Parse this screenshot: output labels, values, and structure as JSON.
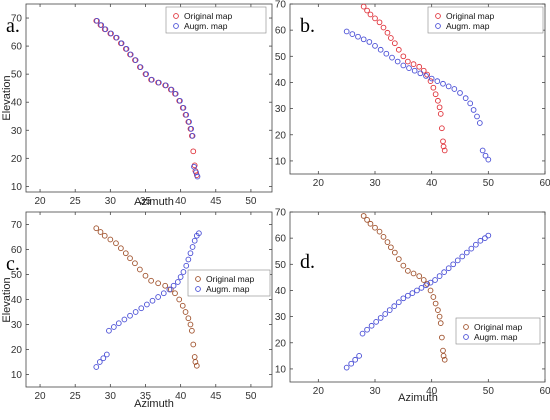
{
  "chart_data": [
    {
      "type": "scatter",
      "panel_label": "a.",
      "xlabel": "Azimuth",
      "ylabel": "Elevation",
      "xlim": [
        18,
        53
      ],
      "ylim": [
        8,
        75
      ],
      "xticks": [
        20,
        25,
        30,
        35,
        40,
        45,
        50
      ],
      "yticks": [
        10,
        20,
        30,
        40,
        50,
        60,
        70
      ],
      "legend_position": "top-right",
      "series": [
        {
          "name": "Original map",
          "color": "#e0343c",
          "points": [
            [
              28.0,
              69
            ],
            [
              28.6,
              67.5
            ],
            [
              29.2,
              66
            ],
            [
              30.0,
              64.5
            ],
            [
              30.8,
              63
            ],
            [
              31.5,
              61
            ],
            [
              32.2,
              59
            ],
            [
              32.8,
              57
            ],
            [
              33.5,
              55
            ],
            [
              34.2,
              52.5
            ],
            [
              35.0,
              50
            ],
            [
              35.8,
              48
            ],
            [
              36.8,
              47
            ],
            [
              37.8,
              46
            ],
            [
              38.6,
              44.5
            ],
            [
              39.2,
              43
            ],
            [
              39.8,
              40.5
            ],
            [
              40.3,
              38
            ],
            [
              40.7,
              35.5
            ],
            [
              41.1,
              33
            ],
            [
              41.4,
              30.5
            ],
            [
              41.6,
              28
            ],
            [
              41.8,
              22.5
            ],
            [
              42.0,
              17.5
            ],
            [
              42.1,
              15.5
            ],
            [
              42.3,
              14
            ]
          ]
        },
        {
          "name": "Augm. map",
          "color": "#4a4fd6",
          "points": [
            [
              28.1,
              69
            ],
            [
              28.7,
              67.5
            ],
            [
              29.3,
              66
            ],
            [
              30.1,
              64.5
            ],
            [
              30.9,
              63
            ],
            [
              31.6,
              61
            ],
            [
              32.3,
              59
            ],
            [
              32.9,
              57
            ],
            [
              33.6,
              55
            ],
            [
              34.3,
              52.5
            ],
            [
              35.1,
              50
            ],
            [
              35.9,
              48
            ],
            [
              36.9,
              47
            ],
            [
              37.9,
              46
            ],
            [
              38.7,
              44.5
            ],
            [
              39.3,
              43
            ],
            [
              39.9,
              40.5
            ],
            [
              40.4,
              38
            ],
            [
              40.8,
              35.5
            ],
            [
              41.2,
              33
            ],
            [
              41.5,
              30.5
            ],
            [
              41.7,
              28
            ],
            [
              41.9,
              17
            ],
            [
              42.2,
              15
            ],
            [
              42.4,
              13.5
            ]
          ]
        }
      ]
    },
    {
      "type": "scatter",
      "panel_label": "b.",
      "xlabel": "",
      "ylabel": "",
      "xlim": [
        15,
        60
      ],
      "ylim": [
        5,
        70
      ],
      "xticks": [
        20,
        30,
        40,
        50,
        60
      ],
      "yticks": [
        10,
        20,
        30,
        40,
        50,
        60,
        70
      ],
      "legend_position": "top-right",
      "series": [
        {
          "name": "Original map",
          "color": "#e0343c",
          "points": [
            [
              28.0,
              69
            ],
            [
              28.6,
              67.5
            ],
            [
              29.2,
              66
            ],
            [
              30.0,
              64.5
            ],
            [
              30.8,
              63
            ],
            [
              31.5,
              61
            ],
            [
              32.2,
              59
            ],
            [
              32.8,
              57
            ],
            [
              33.5,
              55
            ],
            [
              34.2,
              52.5
            ],
            [
              35.0,
              50
            ],
            [
              35.8,
              48
            ],
            [
              36.8,
              47
            ],
            [
              37.8,
              46
            ],
            [
              38.6,
              44.5
            ],
            [
              39.2,
              43
            ],
            [
              39.8,
              40.5
            ],
            [
              40.3,
              38
            ],
            [
              40.7,
              35.5
            ],
            [
              41.1,
              33
            ],
            [
              41.4,
              30.5
            ],
            [
              41.6,
              28
            ],
            [
              41.8,
              22.5
            ],
            [
              42.0,
              17.5
            ],
            [
              42.1,
              15.5
            ],
            [
              42.3,
              14
            ]
          ]
        },
        {
          "name": "Augm. map",
          "color": "#4a4fd6",
          "points": [
            [
              25.0,
              59.5
            ],
            [
              26.0,
              58.5
            ],
            [
              27.0,
              57.5
            ],
            [
              28.0,
              56.5
            ],
            [
              29.0,
              55.5
            ],
            [
              30.0,
              54
            ],
            [
              31.0,
              52.5
            ],
            [
              32.0,
              51
            ],
            [
              33.0,
              49.5
            ],
            [
              34.0,
              48
            ],
            [
              35.0,
              46.5
            ],
            [
              36.0,
              45.5
            ],
            [
              37.0,
              44.5
            ],
            [
              38.0,
              43.5
            ],
            [
              39.0,
              42.5
            ],
            [
              40.0,
              41.5
            ],
            [
              41.0,
              40.5
            ],
            [
              42.0,
              39.5
            ],
            [
              43.0,
              38.5
            ],
            [
              44.0,
              37.5
            ],
            [
              45.0,
              36
            ],
            [
              46.0,
              34
            ],
            [
              46.8,
              32
            ],
            [
              47.4,
              29.5
            ],
            [
              48.0,
              27
            ],
            [
              48.5,
              24.5
            ],
            [
              49.0,
              14
            ],
            [
              49.5,
              12
            ],
            [
              50.0,
              10.5
            ]
          ]
        }
      ]
    },
    {
      "type": "scatter",
      "panel_label": "c.",
      "xlabel": "Azimuth",
      "ylabel": "Elevation",
      "xlim": [
        18,
        53
      ],
      "ylim": [
        5,
        75
      ],
      "xticks": [
        20,
        25,
        30,
        35,
        40,
        45,
        50
      ],
      "yticks": [
        10,
        20,
        30,
        40,
        50,
        60,
        70
      ],
      "legend_position": "right",
      "series": [
        {
          "name": "Original map",
          "color": "#a0522d",
          "points": [
            [
              28.0,
              68.5
            ],
            [
              28.6,
              67
            ],
            [
              29.2,
              65.5
            ],
            [
              30.0,
              64
            ],
            [
              30.8,
              62.5
            ],
            [
              31.5,
              60.5
            ],
            [
              32.2,
              58.5
            ],
            [
              32.8,
              56.5
            ],
            [
              33.5,
              54.5
            ],
            [
              34.2,
              52
            ],
            [
              35.0,
              49.5
            ],
            [
              35.8,
              47.5
            ],
            [
              36.8,
              46.5
            ],
            [
              37.8,
              45.5
            ],
            [
              38.6,
              44
            ],
            [
              39.2,
              42.5
            ],
            [
              39.8,
              40
            ],
            [
              40.3,
              37.5
            ],
            [
              40.7,
              35
            ],
            [
              41.1,
              32.5
            ],
            [
              41.4,
              30
            ],
            [
              41.6,
              27.5
            ],
            [
              41.8,
              22
            ],
            [
              42.0,
              17
            ],
            [
              42.1,
              15
            ],
            [
              42.3,
              13.5
            ]
          ]
        },
        {
          "name": "Augm. map",
          "color": "#4a4fd6",
          "points": [
            [
              28.0,
              13
            ],
            [
              28.5,
              15
            ],
            [
              29.0,
              16.5
            ],
            [
              29.5,
              18
            ],
            [
              29.8,
              27.5
            ],
            [
              30.5,
              29
            ],
            [
              31.2,
              30.5
            ],
            [
              32.0,
              32
            ],
            [
              32.8,
              33.5
            ],
            [
              33.6,
              35
            ],
            [
              34.4,
              36.5
            ],
            [
              35.2,
              38
            ],
            [
              36.0,
              39.5
            ],
            [
              36.8,
              41
            ],
            [
              37.6,
              42.5
            ],
            [
              38.4,
              44
            ],
            [
              39.0,
              45.5
            ],
            [
              39.6,
              47
            ],
            [
              40.0,
              49
            ],
            [
              40.4,
              51
            ],
            [
              40.8,
              53.5
            ],
            [
              41.1,
              56
            ],
            [
              41.4,
              58.5
            ],
            [
              41.7,
              61
            ],
            [
              42.0,
              63.5
            ],
            [
              42.3,
              65.5
            ],
            [
              42.6,
              66.5
            ]
          ]
        }
      ]
    },
    {
      "type": "scatter",
      "panel_label": "d.",
      "xlabel": "Azimuth",
      "ylabel": "",
      "xlim": [
        15,
        60
      ],
      "ylim": [
        5,
        70
      ],
      "xticks": [
        20,
        30,
        40,
        50,
        60
      ],
      "yticks": [
        10,
        20,
        30,
        40,
        50,
        60,
        70
      ],
      "legend_position": "bottom-right",
      "series": [
        {
          "name": "Original map",
          "color": "#a0522d",
          "points": [
            [
              28.0,
              68.5
            ],
            [
              28.6,
              67
            ],
            [
              29.2,
              65.5
            ],
            [
              30.0,
              64
            ],
            [
              30.8,
              62.5
            ],
            [
              31.5,
              60.5
            ],
            [
              32.2,
              58.5
            ],
            [
              32.8,
              56.5
            ],
            [
              33.5,
              54.5
            ],
            [
              34.2,
              52
            ],
            [
              35.0,
              49.5
            ],
            [
              35.8,
              47.5
            ],
            [
              36.8,
              46.5
            ],
            [
              37.8,
              45.5
            ],
            [
              38.6,
              44
            ],
            [
              39.2,
              42.5
            ],
            [
              39.8,
              40
            ],
            [
              40.3,
              37.5
            ],
            [
              40.7,
              35
            ],
            [
              41.1,
              32.5
            ],
            [
              41.4,
              30
            ],
            [
              41.6,
              27.5
            ],
            [
              41.8,
              22
            ],
            [
              42.0,
              17
            ],
            [
              42.1,
              15
            ],
            [
              42.3,
              13.5
            ]
          ]
        },
        {
          "name": "Augm. map",
          "color": "#4a4fd6",
          "points": [
            [
              25.0,
              10.5
            ],
            [
              25.8,
              12
            ],
            [
              26.5,
              13.5
            ],
            [
              27.2,
              15
            ],
            [
              27.8,
              23.5
            ],
            [
              28.6,
              25
            ],
            [
              29.4,
              26.5
            ],
            [
              30.2,
              28
            ],
            [
              31.0,
              29.5
            ],
            [
              31.8,
              31
            ],
            [
              32.6,
              32.5
            ],
            [
              33.4,
              34
            ],
            [
              34.2,
              35.5
            ],
            [
              35.0,
              37
            ],
            [
              35.8,
              38
            ],
            [
              36.6,
              39
            ],
            [
              37.4,
              40
            ],
            [
              38.2,
              41
            ],
            [
              39.0,
              42
            ],
            [
              39.8,
              43
            ],
            [
              40.6,
              44
            ],
            [
              41.4,
              45.5
            ],
            [
              42.2,
              47
            ],
            [
              43.0,
              48.5
            ],
            [
              43.8,
              50
            ],
            [
              44.6,
              51.5
            ],
            [
              45.4,
              53
            ],
            [
              46.2,
              54.5
            ],
            [
              47.0,
              56
            ],
            [
              47.8,
              57.5
            ],
            [
              48.6,
              59
            ],
            [
              49.4,
              60
            ],
            [
              50.0,
              61
            ]
          ]
        }
      ]
    }
  ]
}
